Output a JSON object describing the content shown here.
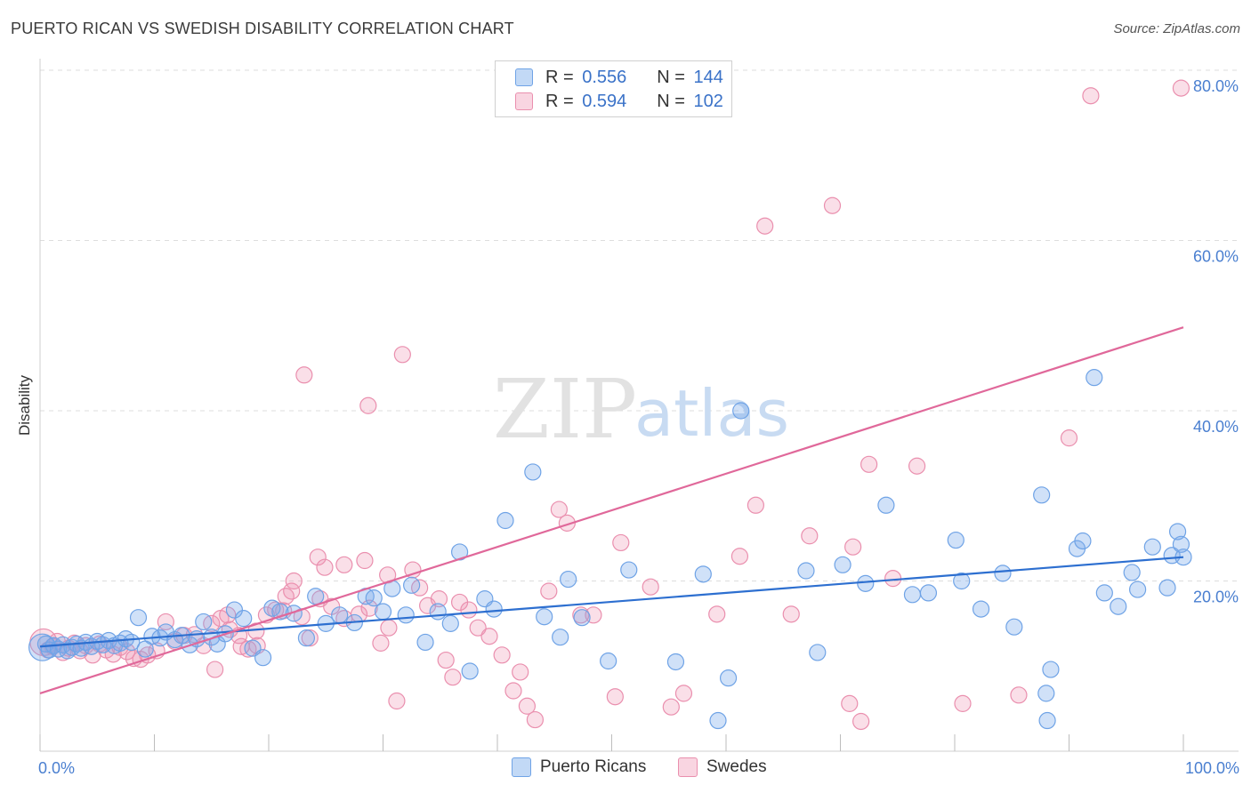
{
  "title": "PUERTO RICAN VS SWEDISH DISABILITY CORRELATION CHART",
  "source": "Source: ZipAtlas.com",
  "watermark": {
    "zip": "ZIP",
    "atlas": "atlas"
  },
  "colors": {
    "blue": "#6fa3e6",
    "blue_fill": "rgba(120,170,235,0.35)",
    "blue_line": "#2d6fd0",
    "pink": "#ea8fae",
    "pink_fill": "rgba(240,150,180,0.30)",
    "pink_line": "#e0689a",
    "grid": "#dddddd",
    "tick_text": "#4a7fd0"
  },
  "legend": {
    "rows": [
      {
        "r_label": "R = ",
        "r_value": "0.556",
        "n_label": "N = ",
        "n_value": "144"
      },
      {
        "r_label": "R = ",
        "r_value": "0.594",
        "n_label": "N = ",
        "n_value": "102"
      }
    ]
  },
  "bottom_legend": [
    "Puerto Ricans",
    "Swedes"
  ],
  "chart_data": {
    "type": "scatter",
    "ylabel": "Disability",
    "xlim": [
      0,
      100
    ],
    "ylim": [
      0,
      80
    ],
    "x_tick_labels": [
      {
        "v": 0,
        "label": "0.0%"
      },
      {
        "v": 100,
        "label": "100.0%"
      }
    ],
    "y_tick_labels": [
      {
        "v": 20,
        "label": "20.0%"
      },
      {
        "v": 40,
        "label": "40.0%"
      },
      {
        "v": 60,
        "label": "60.0%"
      },
      {
        "v": 80,
        "label": "80.0%"
      }
    ],
    "grid": true,
    "series": [
      {
        "name": "Puerto Ricans",
        "trend": [
          [
            0,
            12.3
          ],
          [
            100,
            22.8
          ]
        ],
        "points": [
          [
            0.2,
            12.2
          ],
          [
            0.5,
            12.6
          ],
          [
            0.8,
            11.9
          ],
          [
            1.2,
            12.4
          ],
          [
            1.6,
            12.0
          ],
          [
            2.0,
            12.5
          ],
          [
            2.4,
            11.8
          ],
          [
            2.8,
            12.2
          ],
          [
            3.2,
            12.6
          ],
          [
            3.6,
            12.1
          ],
          [
            4.0,
            12.8
          ],
          [
            4.5,
            12.3
          ],
          [
            5.0,
            12.9
          ],
          [
            5.5,
            12.5
          ],
          [
            6.0,
            13.0
          ],
          [
            6.5,
            12.4
          ],
          [
            7.0,
            12.7
          ],
          [
            7.5,
            13.2
          ],
          [
            8.0,
            12.8
          ],
          [
            8.6,
            15.7
          ],
          [
            9.2,
            12.0
          ],
          [
            9.8,
            13.5
          ],
          [
            10.5,
            13.3
          ],
          [
            11.0,
            14.0
          ],
          [
            11.8,
            13.1
          ],
          [
            12.4,
            13.6
          ],
          [
            13.1,
            12.5
          ],
          [
            13.7,
            13.2
          ],
          [
            14.3,
            15.2
          ],
          [
            15.0,
            13.4
          ],
          [
            15.5,
            12.6
          ],
          [
            16.2,
            13.8
          ],
          [
            17.0,
            16.6
          ],
          [
            17.8,
            15.6
          ],
          [
            18.6,
            12.1
          ],
          [
            19.5,
            11.0
          ],
          [
            20.3,
            16.8
          ],
          [
            21.0,
            16.4
          ],
          [
            22.2,
            16.2
          ],
          [
            23.3,
            13.3
          ],
          [
            24.1,
            18.2
          ],
          [
            25.0,
            15.0
          ],
          [
            26.2,
            16.0
          ],
          [
            27.5,
            15.1
          ],
          [
            28.5,
            18.2
          ],
          [
            29.2,
            18.0
          ],
          [
            30.0,
            16.4
          ],
          [
            30.8,
            19.1
          ],
          [
            32.0,
            16.0
          ],
          [
            32.5,
            19.5
          ],
          [
            33.7,
            12.8
          ],
          [
            34.8,
            16.4
          ],
          [
            35.9,
            15.0
          ],
          [
            36.7,
            23.4
          ],
          [
            37.6,
            9.4
          ],
          [
            38.9,
            17.9
          ],
          [
            39.7,
            16.7
          ],
          [
            40.7,
            27.1
          ],
          [
            43.1,
            32.8
          ],
          [
            44.1,
            15.8
          ],
          [
            45.5,
            13.4
          ],
          [
            46.2,
            20.2
          ],
          [
            47.4,
            15.7
          ],
          [
            49.7,
            10.6
          ],
          [
            51.5,
            21.3
          ],
          [
            55.6,
            10.5
          ],
          [
            58.0,
            20.8
          ],
          [
            59.3,
            3.6
          ],
          [
            60.2,
            8.6
          ],
          [
            67.0,
            21.2
          ],
          [
            68.0,
            11.6
          ],
          [
            70.2,
            21.9
          ],
          [
            72.2,
            19.7
          ],
          [
            74.0,
            28.9
          ],
          [
            76.3,
            18.4
          ],
          [
            77.7,
            18.6
          ],
          [
            80.1,
            24.8
          ],
          [
            80.6,
            20.0
          ],
          [
            82.3,
            16.7
          ],
          [
            84.2,
            20.9
          ],
          [
            85.2,
            14.6
          ],
          [
            87.6,
            30.1
          ],
          [
            88.0,
            6.8
          ],
          [
            88.4,
            9.6
          ],
          [
            90.7,
            23.8
          ],
          [
            91.2,
            24.7
          ],
          [
            93.1,
            18.6
          ],
          [
            94.3,
            17.0
          ],
          [
            95.5,
            21.0
          ],
          [
            96.0,
            19.0
          ],
          [
            97.3,
            24.0
          ],
          [
            98.6,
            19.2
          ],
          [
            99.0,
            23.0
          ],
          [
            99.5,
            25.8
          ],
          [
            99.8,
            24.3
          ],
          [
            100,
            22.8
          ],
          [
            88.1,
            3.6
          ],
          [
            92.2,
            43.9
          ],
          [
            61.3,
            40.0
          ]
        ]
      },
      {
        "name": "Swedes",
        "trend": [
          [
            0,
            6.8
          ],
          [
            100,
            49.8
          ]
        ],
        "points": [
          [
            0.3,
            12.8
          ],
          [
            0.7,
            11.9
          ],
          [
            1.1,
            12.3
          ],
          [
            1.5,
            12.9
          ],
          [
            2.0,
            11.6
          ],
          [
            2.5,
            12.1
          ],
          [
            3.0,
            12.7
          ],
          [
            3.5,
            11.8
          ],
          [
            4.0,
            12.4
          ],
          [
            4.6,
            11.3
          ],
          [
            5.2,
            12.6
          ],
          [
            5.8,
            11.9
          ],
          [
            6.4,
            11.4
          ],
          [
            7.0,
            12.2
          ],
          [
            7.6,
            11.7
          ],
          [
            8.2,
            10.9
          ],
          [
            8.8,
            10.8
          ],
          [
            9.4,
            11.3
          ],
          [
            10.2,
            11.8
          ],
          [
            11.0,
            15.2
          ],
          [
            11.8,
            12.9
          ],
          [
            12.6,
            13.6
          ],
          [
            13.5,
            13.7
          ],
          [
            14.3,
            12.4
          ],
          [
            15.0,
            15.0
          ],
          [
            15.8,
            15.6
          ],
          [
            16.6,
            14.3
          ],
          [
            17.4,
            13.6
          ],
          [
            18.2,
            12.0
          ],
          [
            19.0,
            12.4
          ],
          [
            19.8,
            16.0
          ],
          [
            20.6,
            16.6
          ],
          [
            21.3,
            16.5
          ],
          [
            22.0,
            18.8
          ],
          [
            22.9,
            15.8
          ],
          [
            23.6,
            13.3
          ],
          [
            24.5,
            17.9
          ],
          [
            25.5,
            17.0
          ],
          [
            26.6,
            15.6
          ],
          [
            27.9,
            16.1
          ],
          [
            28.8,
            16.8
          ],
          [
            29.8,
            12.7
          ],
          [
            30.5,
            14.5
          ],
          [
            31.2,
            5.9
          ],
          [
            32.6,
            21.3
          ],
          [
            33.2,
            19.2
          ],
          [
            33.9,
            17.1
          ],
          [
            34.9,
            17.9
          ],
          [
            35.5,
            10.7
          ],
          [
            36.1,
            8.7
          ],
          [
            36.7,
            17.5
          ],
          [
            37.5,
            16.6
          ],
          [
            38.3,
            14.5
          ],
          [
            39.3,
            13.5
          ],
          [
            40.4,
            11.3
          ],
          [
            41.4,
            7.1
          ],
          [
            42.0,
            9.3
          ],
          [
            42.6,
            5.3
          ],
          [
            43.3,
            3.7
          ],
          [
            44.5,
            18.8
          ],
          [
            45.4,
            28.4
          ],
          [
            46.1,
            26.8
          ],
          [
            47.3,
            16.0
          ],
          [
            48.4,
            16.0
          ],
          [
            50.3,
            6.4
          ],
          [
            50.8,
            24.5
          ],
          [
            53.4,
            19.3
          ],
          [
            55.2,
            5.2
          ],
          [
            56.3,
            6.8
          ],
          [
            59.2,
            16.1
          ],
          [
            61.2,
            22.9
          ],
          [
            62.6,
            28.9
          ],
          [
            63.4,
            61.7
          ],
          [
            65.7,
            16.1
          ],
          [
            67.3,
            25.3
          ],
          [
            69.3,
            64.1
          ],
          [
            70.8,
            5.6
          ],
          [
            71.1,
            24.0
          ],
          [
            71.8,
            3.5
          ],
          [
            72.5,
            33.7
          ],
          [
            74.6,
            20.3
          ],
          [
            76.7,
            33.5
          ],
          [
            80.7,
            5.6
          ],
          [
            85.6,
            6.6
          ],
          [
            90.0,
            36.8
          ],
          [
            91.9,
            77.0
          ],
          [
            99.8,
            77.9
          ],
          [
            24.3,
            22.8
          ],
          [
            23.1,
            44.2
          ],
          [
            31.7,
            46.6
          ],
          [
            28.7,
            40.6
          ],
          [
            24.9,
            21.6
          ],
          [
            26.6,
            21.9
          ],
          [
            28.4,
            22.4
          ],
          [
            30.4,
            20.7
          ],
          [
            21.5,
            18.2
          ],
          [
            22.2,
            20.0
          ],
          [
            18.9,
            14.1
          ],
          [
            17.6,
            12.3
          ],
          [
            15.3,
            9.6
          ],
          [
            16.4,
            16.0
          ]
        ]
      }
    ]
  }
}
